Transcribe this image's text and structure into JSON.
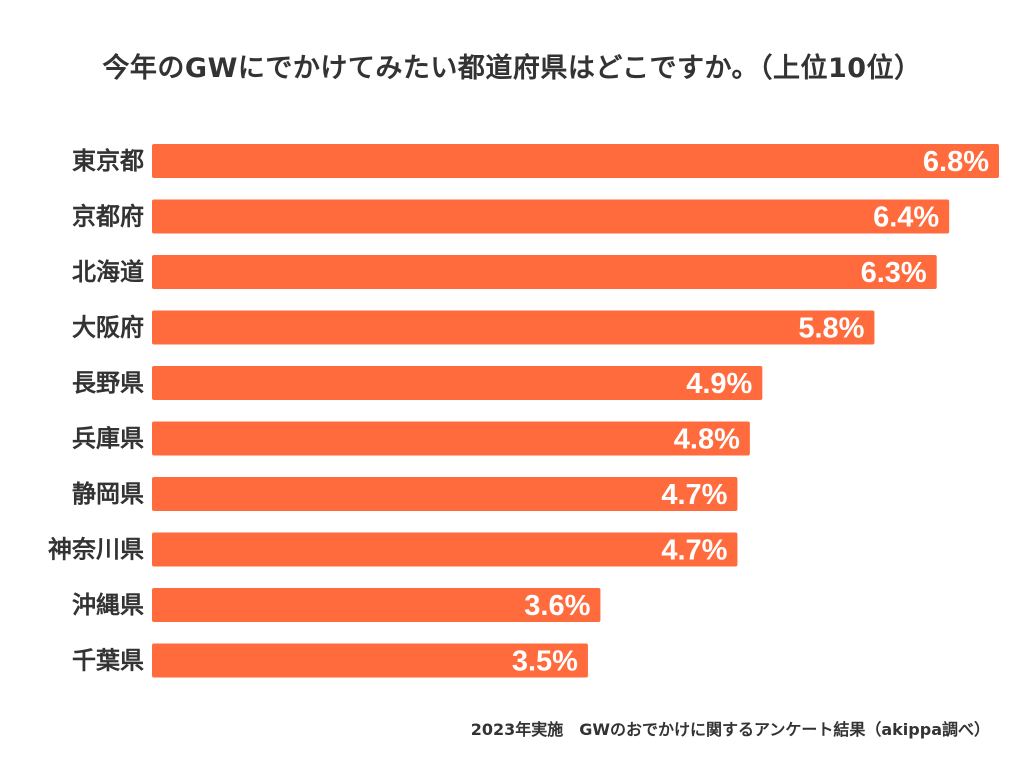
{
  "chart_data": {
    "type": "bar",
    "orientation": "horizontal",
    "title": "今年のGWにでかけてみたい都道府県はどこですか。（上位10位）",
    "categories": [
      "東京都",
      "京都府",
      "北海道",
      "大阪府",
      "長野県",
      "兵庫県",
      "静岡県",
      "神奈川県",
      "沖縄県",
      "千葉県"
    ],
    "values": [
      6.8,
      6.4,
      6.3,
      5.8,
      4.9,
      4.8,
      4.7,
      4.7,
      3.6,
      3.5
    ],
    "value_labels": [
      "6.8%",
      "6.4%",
      "6.3%",
      "5.8%",
      "4.9%",
      "4.8%",
      "4.7%",
      "4.7%",
      "3.6%",
      "3.5%"
    ],
    "unit": "%",
    "xlim": [
      0,
      6.8
    ],
    "bar_color": "#FF6B3D",
    "label_color": "#FFFFFF",
    "text_color": "#333333",
    "source_note": "2023年実施　GWのおでかけに関するアンケート結果（akippa調べ）"
  }
}
